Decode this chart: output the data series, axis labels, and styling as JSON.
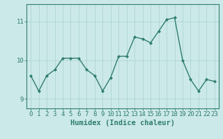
{
  "x": [
    0,
    1,
    2,
    3,
    4,
    5,
    6,
    7,
    8,
    9,
    10,
    11,
    12,
    13,
    14,
    15,
    16,
    17,
    18,
    19,
    20,
    21,
    22,
    23
  ],
  "y": [
    9.6,
    9.2,
    9.6,
    9.75,
    10.05,
    10.05,
    10.05,
    9.75,
    9.6,
    9.2,
    9.55,
    10.1,
    10.1,
    10.6,
    10.55,
    10.45,
    10.75,
    11.05,
    11.1,
    10.0,
    9.5,
    9.2,
    9.5,
    9.45
  ],
  "line_color": "#2e7d6e",
  "marker": "D",
  "marker_size": 2.0,
  "linewidth": 1.0,
  "xlabel": "Humidex (Indice chaleur)",
  "xlim": [
    -0.5,
    23.5
  ],
  "ylim": [
    8.75,
    11.45
  ],
  "yticks": [
    9,
    10,
    11
  ],
  "xticks": [
    0,
    1,
    2,
    3,
    4,
    5,
    6,
    7,
    8,
    9,
    10,
    11,
    12,
    13,
    14,
    15,
    16,
    17,
    18,
    19,
    20,
    21,
    22,
    23
  ],
  "bg_color": "#cce9e9",
  "grid_color": "#aed4d4",
  "axis_color": "#2e7d6e",
  "label_color": "#2e7d6e",
  "xlabel_fontsize": 7.5,
  "tick_fontsize": 6.5
}
